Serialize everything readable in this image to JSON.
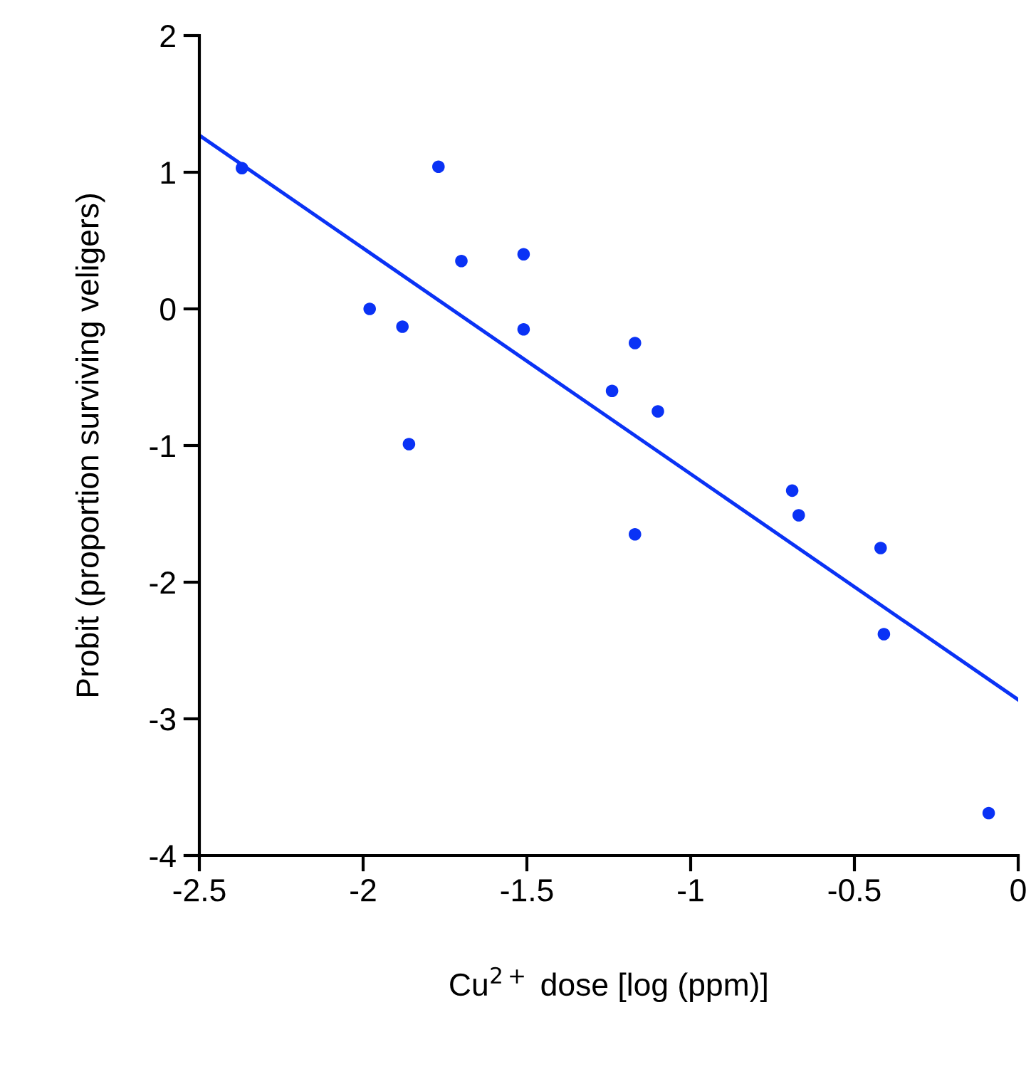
{
  "chart_data": {
    "type": "scatter",
    "xlabel": "Cu$^{2+}$ dose [log (ppm)]",
    "ylabel": "Probit (proportion surviving veligers)",
    "xlim": [
      -2.5,
      0
    ],
    "xticks": [
      -2.5,
      -2,
      -1.5,
      -1,
      -0.5,
      0
    ],
    "ylim": [
      -4,
      2
    ],
    "yticks": [
      -4,
      -3,
      -2,
      -1,
      0,
      1,
      2
    ],
    "series": [
      {
        "color": "#0a32f5",
        "marker": "circle",
        "x": [
          -2.37,
          -1.98,
          -1.88,
          -1.86,
          -1.77,
          -1.7,
          -1.51,
          -1.51,
          -1.24,
          -1.17,
          -1.17,
          -1.1,
          -0.69,
          -0.67,
          -0.42,
          -0.41,
          -0.09
        ],
        "values": [
          1.03,
          0.0,
          -0.13,
          -0.99,
          1.04,
          0.35,
          0.4,
          -0.15,
          -0.6,
          -0.25,
          -1.65,
          -0.75,
          -1.33,
          -1.51,
          -1.75,
          -2.38,
          -3.69
        ]
      },
      {
        "type": "line",
        "color": "#0a32f5",
        "marker": "none",
        "x": [
          -2.5,
          0
        ],
        "values": [
          1.27,
          -2.86
        ]
      }
    ]
  }
}
